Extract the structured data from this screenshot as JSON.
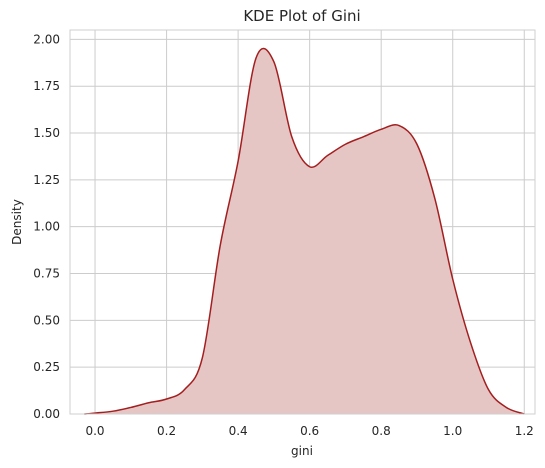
{
  "chart_data": {
    "type": "area",
    "title": "KDE Plot of Gini",
    "xlabel": "gini",
    "ylabel": "Density",
    "xlim": [
      -0.07,
      1.23
    ],
    "ylim": [
      0,
      2.05
    ],
    "x_ticks": [
      0.0,
      0.2,
      0.4,
      0.6,
      0.8,
      1.0,
      1.2
    ],
    "x_tick_labels": [
      "0.0",
      "0.2",
      "0.4",
      "0.6",
      "0.8",
      "1.0",
      "1.2"
    ],
    "y_ticks": [
      0.0,
      0.25,
      0.5,
      0.75,
      1.0,
      1.25,
      1.5,
      1.75,
      2.0
    ],
    "y_tick_labels": [
      "0.00",
      "0.25",
      "0.50",
      "0.75",
      "1.00",
      "1.25",
      "1.50",
      "1.75",
      "2.00"
    ],
    "grid": true,
    "legend": "none",
    "colors": {
      "line": "#a31f1f",
      "fill": "#e6c5c5",
      "grid": "#cccccc",
      "frame": "#cfcfcf",
      "text": "#262626"
    },
    "series": [
      {
        "x": [
          -0.03,
          0.0,
          0.05,
          0.1,
          0.15,
          0.2,
          0.25,
          0.3,
          0.35,
          0.4,
          0.45,
          0.5,
          0.55,
          0.6,
          0.65,
          0.7,
          0.75,
          0.8,
          0.85,
          0.9,
          0.95,
          1.0,
          1.05,
          1.1,
          1.15,
          1.2
        ],
        "y": [
          0.0,
          0.005,
          0.015,
          0.035,
          0.06,
          0.08,
          0.13,
          0.3,
          0.9,
          1.35,
          1.9,
          1.88,
          1.48,
          1.32,
          1.38,
          1.44,
          1.48,
          1.52,
          1.54,
          1.44,
          1.15,
          0.72,
          0.38,
          0.13,
          0.035,
          0.0
        ]
      }
    ]
  }
}
